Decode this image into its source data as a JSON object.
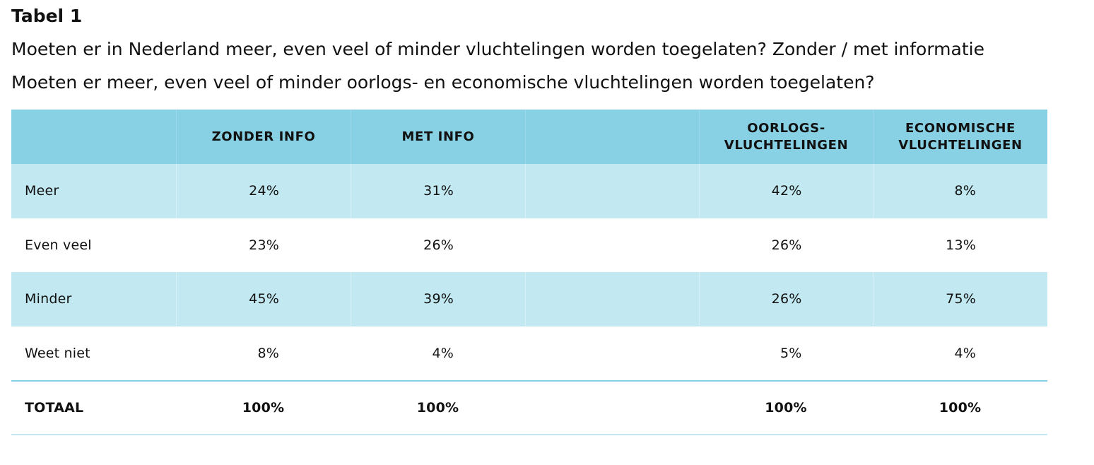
{
  "title": "Tabel 1",
  "subtitle_1": "Moeten er in Nederland meer, even veel of minder vluchtelingen worden toegelaten? Zonder / met informatie",
  "subtitle_2": "Moeten er meer, even veel of minder oorlogs- en economische vluchtelingen worden toegelaten?",
  "colors": {
    "header_bg": "#88d1e4",
    "shaded_row_bg": "#c2e9f1",
    "text": "#111111"
  },
  "table": {
    "headers": [
      "",
      "ZONDER INFO",
      "MET INFO",
      "",
      "OORLOGS- VLUCHTELINGEN",
      "ECONOMISCHE VLUCHTELINGEN"
    ],
    "rows": [
      {
        "label": "Meer",
        "zonder_info": "24%",
        "met_info": "31%",
        "empty": "",
        "oorlogs": "42%",
        "economische": "8%"
      },
      {
        "label": "Even veel",
        "zonder_info": "23%",
        "met_info": "26%",
        "empty": "",
        "oorlogs": "26%",
        "economische": "13%"
      },
      {
        "label": "Minder",
        "zonder_info": "45%",
        "met_info": "39%",
        "empty": "",
        "oorlogs": "26%",
        "economische": "75%"
      },
      {
        "label": "Weet niet",
        "zonder_info": "8%",
        "met_info": "4%",
        "empty": "",
        "oorlogs": "5%",
        "economische": "4%"
      }
    ],
    "total": {
      "label": "TOTAAL",
      "zonder_info": "100%",
      "met_info": "100%",
      "empty": "",
      "oorlogs": "100%",
      "economische": "100%"
    }
  }
}
